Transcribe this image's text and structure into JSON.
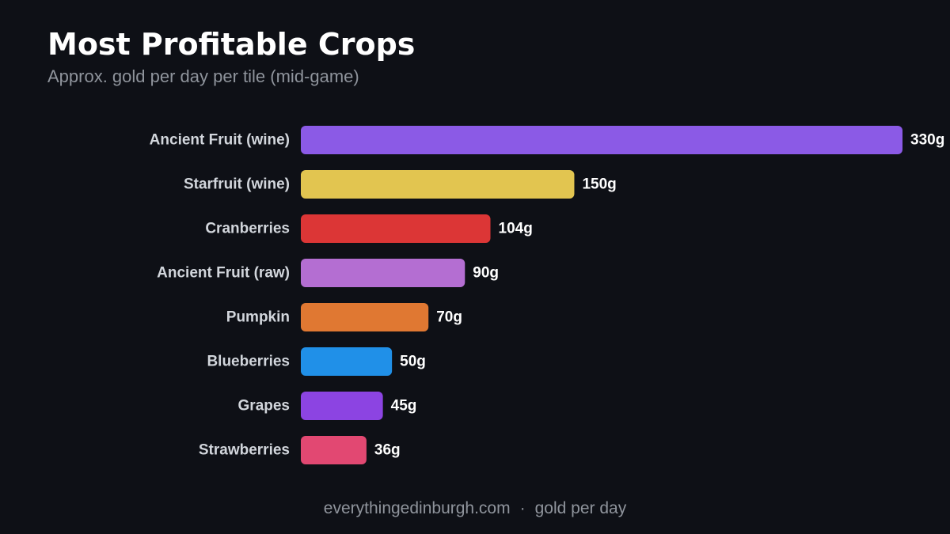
{
  "header": {
    "title": "Most Profitable Crops",
    "subtitle": "Approx. gold per day per tile (mid-game)"
  },
  "chart_data": {
    "type": "bar",
    "orientation": "horizontal",
    "categories": [
      "Ancient Fruit (wine)",
      "Starfruit (wine)",
      "Cranberries",
      "Ancient Fruit (raw)",
      "Pumpkin",
      "Blueberries",
      "Grapes",
      "Strawberries"
    ],
    "values": [
      330,
      150,
      104,
      90,
      70,
      50,
      45,
      36
    ],
    "value_labels": [
      "330g",
      "150g",
      "104g",
      "90g",
      "70g",
      "50g",
      "45g",
      "36g"
    ],
    "colors": [
      "#8b5ae6",
      "#e2c550",
      "#dc3636",
      "#b46ed2",
      "#e07832",
      "#2090e8",
      "#8c44e2",
      "#e24872"
    ],
    "xlim": [
      0,
      330
    ],
    "grid": false,
    "legend": "none"
  },
  "footer": {
    "source": "everythingedinburgh.com",
    "separator": "·",
    "note": "gold per day"
  }
}
